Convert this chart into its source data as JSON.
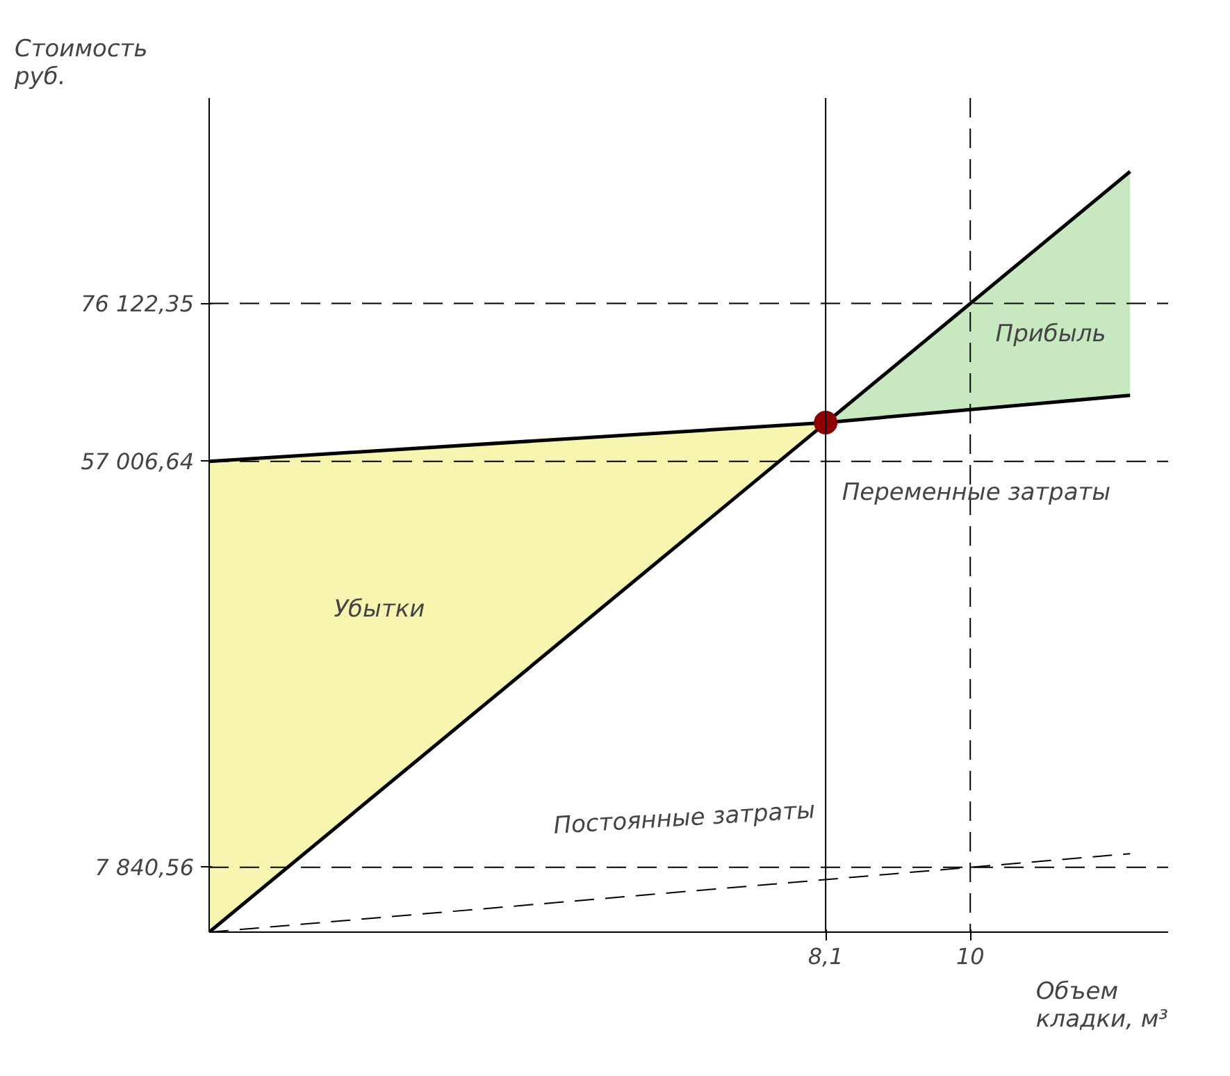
{
  "chart_data": {
    "type": "line",
    "xlabel": "Объем кладки, м³",
    "ylabel": "Стоимость руб.",
    "xlim": [
      0,
      12.6
    ],
    "ylim": [
      0,
      101000
    ],
    "xticks": [
      {
        "value": 8.1,
        "label": "8,1"
      },
      10
    ],
    "yticks": [
      {
        "value": 7840.56,
        "label": "7 840,56"
      },
      {
        "value": 57006.64,
        "label": "57 006,64"
      },
      {
        "value": 76122.35,
        "label": "76 122,35"
      }
    ],
    "grid": false,
    "series": [
      {
        "type": "line",
        "color": "#f7f5b0",
        "x": [
          0,
          8.1
        ],
        "lower": [
          0,
          61700
        ],
        "upper": [
          57000,
          61700
        ],
        "values": [
          null,
          null
        ]
      },
      {
        "type": "line",
        "color": "#c8e8c0",
        "x": [
          8.1,
          12.1
        ],
        "lower": [
          61700,
          65000
        ],
        "upper": [
          61700,
          92100
        ],
        "values": [
          null,
          null
        ]
      },
      {
        "color": "#000000",
        "x": [
          0,
          12.1
        ],
        "values": [
          0,
          92100
        ],
        "line_style": "solid"
      },
      {
        "color": "#000000",
        "x": [
          0,
          8.1,
          12.1
        ],
        "values": [
          57000,
          61700,
          65000
        ],
        "line_style": "solid"
      },
      {
        "color": "#000000",
        "x": [
          0,
          12.1
        ],
        "values": [
          0,
          9500
        ],
        "line_style": "dashed"
      },
      {
        "type": "scatter",
        "color": "#8b0000",
        "marker": "circle",
        "x": [
          8.1
        ],
        "values": [
          61700
        ]
      }
    ],
    "ref_lines": [
      {
        "axis": "y",
        "value": 7840.56,
        "line_style": "dashed"
      },
      {
        "axis": "y",
        "value": 57006.64,
        "line_style": "dashed"
      },
      {
        "axis": "y",
        "value": 76122.35,
        "line_style": "dashed"
      },
      {
        "axis": "x",
        "value": 8.1,
        "line_style": "solid"
      },
      {
        "axis": "x",
        "value": 10,
        "line_style": "dashed"
      }
    ],
    "annotations": [
      "Убытки",
      "Прибыль",
      "Переменные затраты",
      "Постоянные затраты"
    ]
  }
}
